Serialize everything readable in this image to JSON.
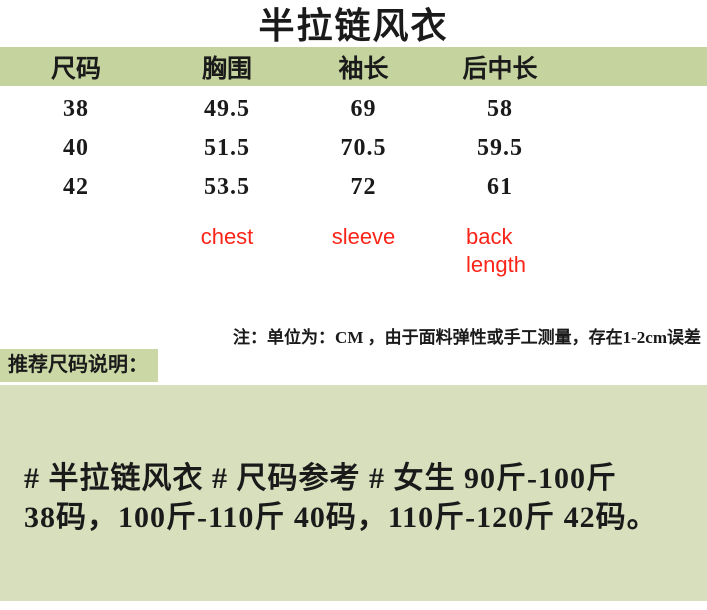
{
  "title": "半拉链风衣",
  "table": {
    "headers": [
      "尺码",
      "胸围",
      "袖长",
      "后中长"
    ],
    "rows": [
      [
        "38",
        "49.5",
        "69",
        "58"
      ],
      [
        "40",
        "51.5",
        "70.5",
        "59.5"
      ],
      [
        "42",
        "53.5",
        "72",
        "61"
      ]
    ],
    "en_labels": [
      "chest",
      "sleeve",
      "back length"
    ]
  },
  "note": "注：单位为：CM ，由于面料弹性或手工测量，存在1-2cm误差",
  "recommend": {
    "label": "推荐尺码说明：",
    "lines": [
      "# 半拉链风衣 # 尺码参考 # 女生 90斤-100斤",
      "38码，100斤-110斤 40码，110斤-120斤 42码。"
    ]
  },
  "colors": {
    "header_green": "#c5d49e",
    "label_green": "#cbd8a6",
    "box_green": "#d8dfbd",
    "accent_red": "#fa2418"
  }
}
